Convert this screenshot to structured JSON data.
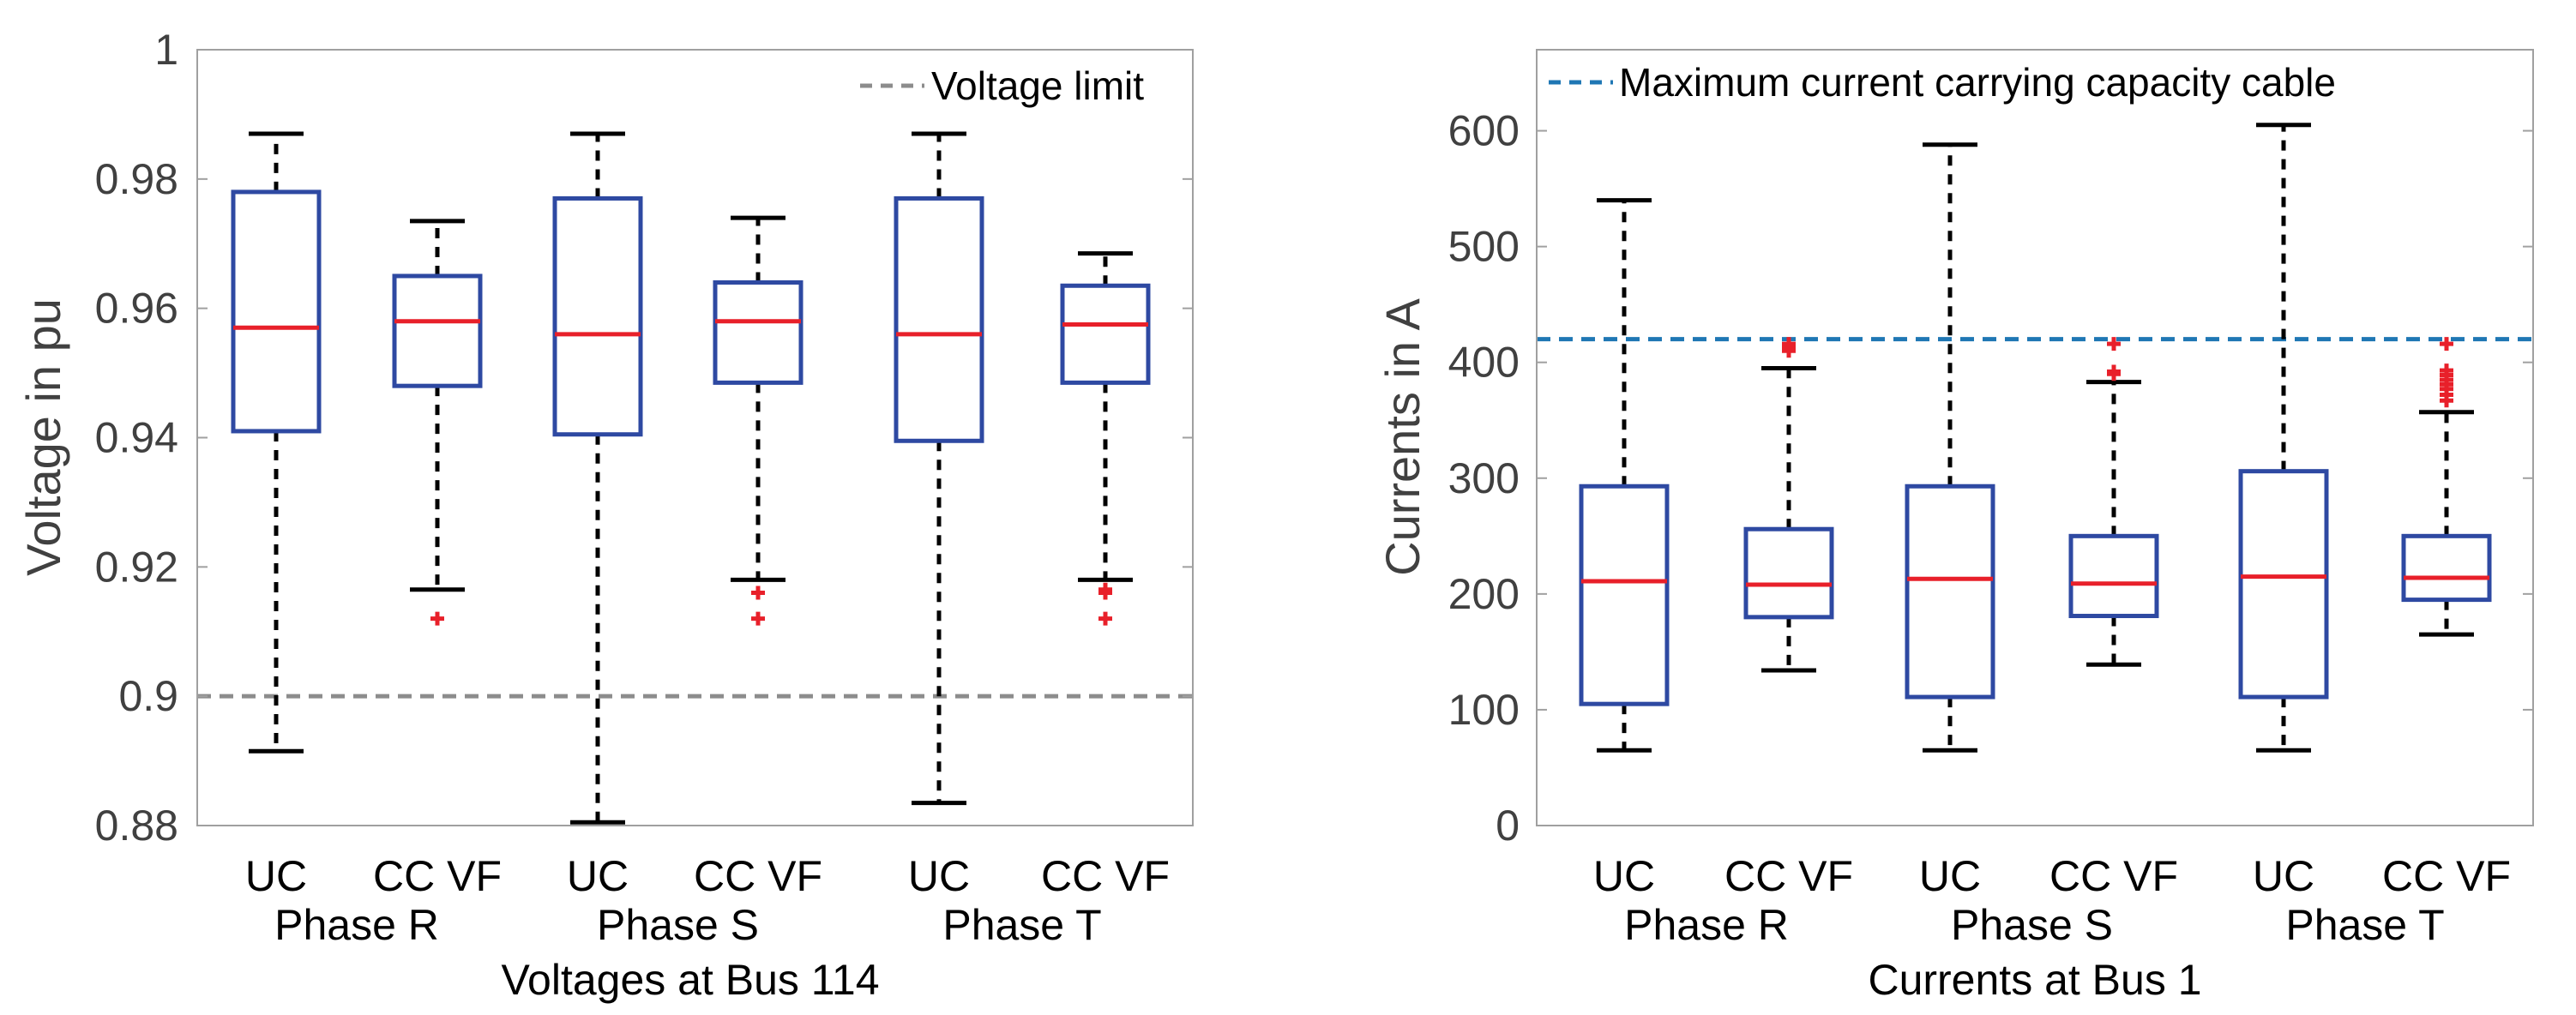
{
  "chart_data": [
    {
      "type": "box",
      "title": "",
      "xlabel": "Voltages at Bus 114",
      "ylabel": "Voltage in pu",
      "ylim": [
        0.88,
        1.0
      ],
      "yticks": [
        0.88,
        0.9,
        0.92,
        0.94,
        0.96,
        0.98,
        1
      ],
      "ytick_labels": [
        "0.88",
        "0.9",
        "0.92",
        "0.94",
        "0.96",
        "0.98",
        "1"
      ],
      "grid": false,
      "categories": [
        "UC",
        "CC VF",
        "UC",
        "CC VF",
        "UC",
        "CC VF"
      ],
      "groups": [
        "Phase R",
        "Phase S",
        "Phase T"
      ],
      "boxes": [
        {
          "label": "UC",
          "group": "Phase R",
          "whisker_low": 0.8915,
          "q1": 0.941,
          "median": 0.957,
          "q3": 0.978,
          "whisker_high": 0.987,
          "outliers": []
        },
        {
          "label": "CC VF",
          "group": "Phase R",
          "whisker_low": 0.9165,
          "q1": 0.948,
          "median": 0.958,
          "q3": 0.965,
          "whisker_high": 0.9735,
          "outliers": [
            0.912
          ]
        },
        {
          "label": "UC",
          "group": "Phase S",
          "whisker_low": 0.8805,
          "q1": 0.9405,
          "median": 0.956,
          "q3": 0.977,
          "whisker_high": 0.987,
          "outliers": []
        },
        {
          "label": "CC VF",
          "group": "Phase S",
          "whisker_low": 0.918,
          "q1": 0.9485,
          "median": 0.958,
          "q3": 0.964,
          "whisker_high": 0.974,
          "outliers": [
            0.916,
            0.912
          ]
        },
        {
          "label": "UC",
          "group": "Phase T",
          "whisker_low": 0.8835,
          "q1": 0.9395,
          "median": 0.956,
          "q3": 0.977,
          "whisker_high": 0.987,
          "outliers": []
        },
        {
          "label": "CC VF",
          "group": "Phase T",
          "whisker_low": 0.918,
          "q1": 0.9485,
          "median": 0.9575,
          "q3": 0.9635,
          "whisker_high": 0.9685,
          "outliers": [
            0.9165,
            0.916,
            0.912
          ]
        }
      ],
      "reference_line": {
        "value": 0.9,
        "label": "Voltage limit",
        "color": "#8c8c8c"
      },
      "legend_position": "top-right",
      "colors": {
        "box": "#2e49a2",
        "median": "#e8202a",
        "whisker": "#000000",
        "outlier": "#e8202a",
        "axis": "#a0a0a0"
      }
    },
    {
      "type": "box",
      "title": "",
      "xlabel": "Currents at Bus 1",
      "ylabel": "Currents in A",
      "ylim": [
        0,
        670
      ],
      "yticks": [
        0,
        100,
        200,
        300,
        400,
        500,
        600
      ],
      "ytick_labels": [
        "0",
        "100",
        "200",
        "300",
        "400",
        "500",
        "600"
      ],
      "grid": false,
      "categories": [
        "UC",
        "CC VF",
        "UC",
        "CC VF",
        "UC",
        "CC VF"
      ],
      "groups": [
        "Phase R",
        "Phase S",
        "Phase T"
      ],
      "boxes": [
        {
          "label": "UC",
          "group": "Phase R",
          "whisker_low": 65,
          "q1": 105,
          "median": 211,
          "q3": 293,
          "whisker_high": 540,
          "outliers": []
        },
        {
          "label": "CC VF",
          "group": "Phase R",
          "whisker_low": 134,
          "q1": 180,
          "median": 208,
          "q3": 256,
          "whisker_high": 395,
          "outliers": [
            410,
            413,
            416
          ]
        },
        {
          "label": "UC",
          "group": "Phase S",
          "whisker_low": 65,
          "q1": 111,
          "median": 213,
          "q3": 293,
          "whisker_high": 588,
          "outliers": []
        },
        {
          "label": "CC VF",
          "group": "Phase S",
          "whisker_low": 139,
          "q1": 181,
          "median": 209,
          "q3": 250,
          "whisker_high": 383,
          "outliers": [
            390,
            392,
            416
          ]
        },
        {
          "label": "UC",
          "group": "Phase T",
          "whisker_low": 65,
          "q1": 111,
          "median": 215,
          "q3": 306,
          "whisker_high": 605,
          "outliers": []
        },
        {
          "label": "CC VF",
          "group": "Phase T",
          "whisker_low": 165,
          "q1": 195,
          "median": 214,
          "q3": 250,
          "whisker_high": 357,
          "outliers": [
            367,
            372,
            377,
            381,
            385,
            389,
            393,
            416
          ]
        }
      ],
      "reference_line": {
        "value": 420,
        "label": "Maximum current carrying capacity cable",
        "color": "#1f77b4"
      },
      "legend_position": "top-left",
      "colors": {
        "box": "#2e49a2",
        "median": "#e8202a",
        "whisker": "#000000",
        "outlier": "#e8202a",
        "axis": "#a0a0a0"
      }
    }
  ]
}
